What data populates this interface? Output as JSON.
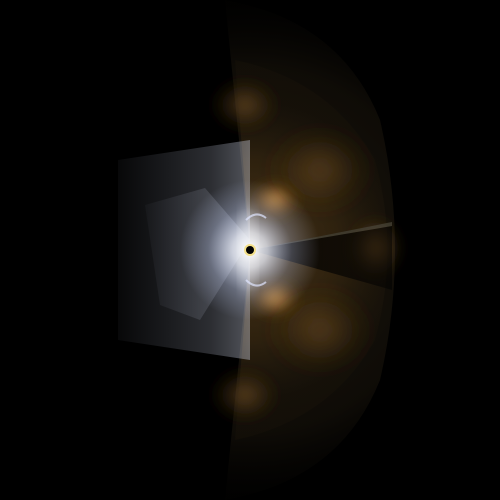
{
  "image": {
    "description_tag": "volumetric-light-render",
    "colors": {
      "background": "#000000",
      "nebula_dark": "#2a1e0c",
      "nebula_mid": "#6b4a1c",
      "nebula_bright": "#e0a040",
      "glow_white": "#ffffff",
      "glow_blue": "#b8c4e8",
      "beam_grey": "#8a8a96",
      "core": "#000000",
      "core_ring": "#f4e08a"
    }
  }
}
